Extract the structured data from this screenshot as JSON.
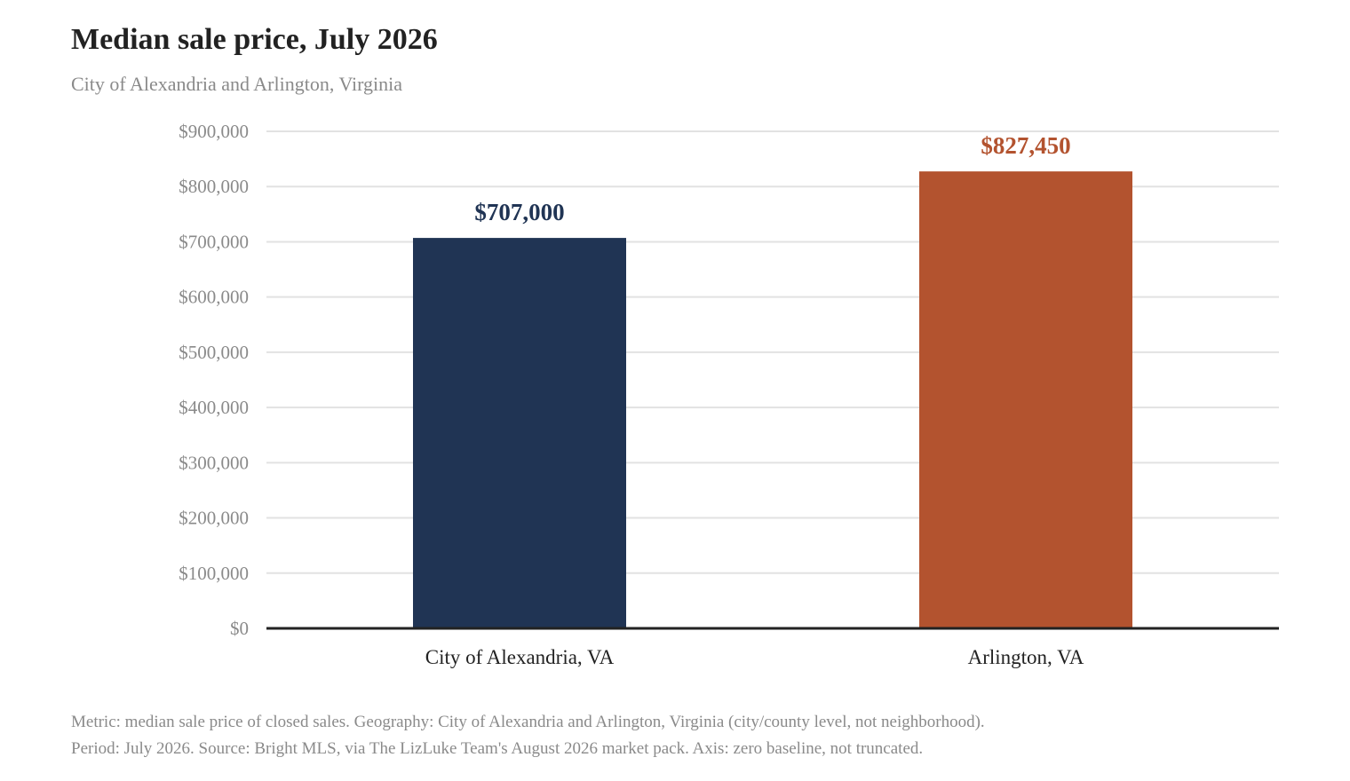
{
  "chart_data": {
    "type": "bar",
    "title": "Median sale price, July 2026",
    "subtitle": "City of Alexandria and Arlington, Virginia",
    "categories": [
      "City of Alexandria, VA",
      "Arlington, VA"
    ],
    "values": [
      707000,
      827450
    ],
    "value_labels": [
      "$707,000",
      "$827,450"
    ],
    "colors": [
      "#203454",
      "#b3532f"
    ],
    "ylim": [
      0,
      900000
    ],
    "yticks": [
      0,
      100000,
      200000,
      300000,
      400000,
      500000,
      600000,
      700000,
      800000,
      900000
    ],
    "ytick_labels": [
      "$0",
      "$100,000",
      "$200,000",
      "$300,000",
      "$400,000",
      "$500,000",
      "$600,000",
      "$700,000",
      "$800,000",
      "$900,000"
    ],
    "xlabel": "",
    "ylabel": "",
    "grid": true,
    "legend": "none"
  },
  "notes": {
    "line1": "Metric: median sale price of closed sales. Geography: City of Alexandria and Arlington, Virginia (city/county level, not neighborhood).",
    "line2": "Period: July 2026. Source: Bright MLS, via The LizLuke Team's August 2026 market pack. Axis: zero baseline, not truncated."
  }
}
